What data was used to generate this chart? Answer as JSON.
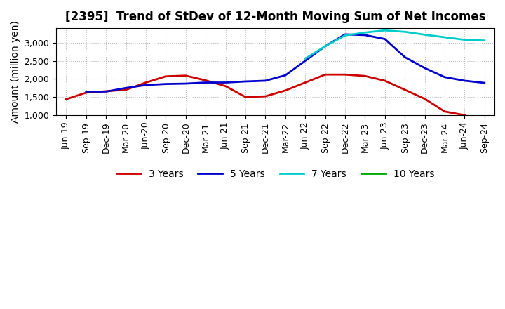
{
  "title": "[2395]  Trend of StDev of 12-Month Moving Sum of Net Incomes",
  "ylabel": "Amount (million yen)",
  "ylim": [
    1000,
    3400
  ],
  "yticks": [
    1000,
    1500,
    2000,
    2500,
    3000
  ],
  "background_color": "#ffffff",
  "grid_color": "#aaaaaa",
  "title_fontsize": 12,
  "label_fontsize": 10,
  "tick_fontsize": 9,
  "legend_fontsize": 10,
  "x_labels": [
    "Jun-19",
    "Sep-19",
    "Dec-19",
    "Mar-20",
    "Jun-20",
    "Sep-20",
    "Dec-20",
    "Mar-21",
    "Jun-21",
    "Sep-21",
    "Dec-21",
    "Mar-22",
    "Jun-22",
    "Sep-22",
    "Dec-22",
    "Mar-23",
    "Jun-23",
    "Sep-23",
    "Dec-23",
    "Mar-24",
    "Jun-24",
    "Sep-24"
  ],
  "series": [
    {
      "name": "3 Years",
      "color": "#cc0000",
      "linewidth": 2.0,
      "values": [
        1440,
        1620,
        1660,
        1700,
        1900,
        2070,
        2090,
        1960,
        1800,
        1500,
        1520,
        1680,
        1900,
        2120,
        2120,
        2080,
        1950,
        1700,
        1450,
        1100,
        1000,
        null
      ]
    },
    {
      "name": "5 Years",
      "color": "#0000cc",
      "linewidth": 2.0,
      "values": [
        null,
        1650,
        1650,
        1750,
        1830,
        1860,
        1870,
        1900,
        1900,
        1930,
        1950,
        2100,
        2500,
        2900,
        3230,
        3210,
        3100,
        2600,
        2300,
        2050,
        1950,
        1890
      ]
    },
    {
      "name": "7 Years",
      "color": "#00cccc",
      "linewidth": 2.0,
      "values": [
        null,
        null,
        null,
        null,
        null,
        null,
        null,
        null,
        null,
        null,
        null,
        null,
        2560,
        2900,
        3200,
        3280,
        3340,
        3300,
        3220,
        3150,
        3080,
        3060
      ]
    },
    {
      "name": "10 Years",
      "color": "#00aa00",
      "linewidth": 2.0,
      "values": [
        null,
        null,
        null,
        null,
        null,
        null,
        null,
        null,
        null,
        null,
        null,
        null,
        null,
        null,
        null,
        null,
        null,
        null,
        null,
        null,
        null,
        null
      ]
    }
  ]
}
